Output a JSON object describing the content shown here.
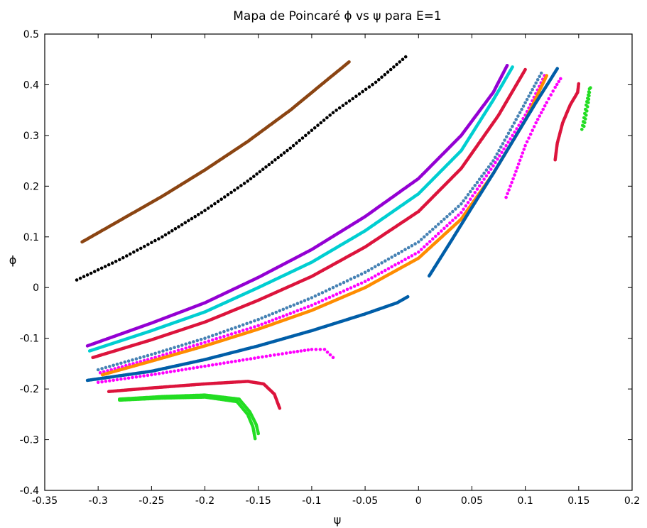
{
  "chart_data": {
    "type": "scatter",
    "title": "Mapa de Poincaré ϕ vs ψ para E=1",
    "xlabel": "ψ",
    "ylabel": "ϕ",
    "xlim": [
      -0.35,
      0.2
    ],
    "ylim": [
      -0.4,
      0.5
    ],
    "grid": false,
    "legend": "none",
    "x_ticks": [
      "-0.35",
      "-0.3",
      "-0.25",
      "-0.2",
      "-0.15",
      "-0.1",
      "-0.05",
      "0",
      "0.05",
      "0.1",
      "0.15",
      "0.2"
    ],
    "x_tick_values": [
      -0.35,
      -0.3,
      -0.25,
      -0.2,
      -0.15,
      -0.1,
      -0.05,
      0,
      0.05,
      0.1,
      0.15,
      0.2
    ],
    "y_ticks": [
      "0.5",
      "0.4",
      "0.3",
      "0.2",
      "0.1",
      "0",
      "-0.1",
      "-0.2",
      "-0.3",
      "-0.4"
    ],
    "y_tick_values": [
      0.5,
      0.4,
      0.3,
      0.2,
      0.1,
      0,
      -0.1,
      -0.2,
      -0.3,
      -0.4
    ],
    "series": [
      {
        "color": "#8b4513",
        "dense": true,
        "points": [
          [
            -0.315,
            0.09
          ],
          [
            -0.28,
            0.132
          ],
          [
            -0.24,
            0.18
          ],
          [
            -0.2,
            0.232
          ],
          [
            -0.16,
            0.288
          ],
          [
            -0.12,
            0.35
          ],
          [
            -0.09,
            0.402
          ],
          [
            -0.065,
            0.445
          ]
        ]
      },
      {
        "color": "#000000",
        "dense": false,
        "points": [
          [
            -0.32,
            0.015
          ],
          [
            -0.28,
            0.055
          ],
          [
            -0.24,
            0.1
          ],
          [
            -0.2,
            0.152
          ],
          [
            -0.16,
            0.21
          ],
          [
            -0.12,
            0.275
          ],
          [
            -0.08,
            0.345
          ],
          [
            -0.04,
            0.405
          ],
          [
            -0.012,
            0.455
          ]
        ]
      },
      {
        "color": "#9400d3",
        "dense": true,
        "points": [
          [
            -0.31,
            -0.115
          ],
          [
            -0.25,
            -0.07
          ],
          [
            -0.2,
            -0.03
          ],
          [
            -0.15,
            0.02
          ],
          [
            -0.1,
            0.075
          ],
          [
            -0.05,
            0.14
          ],
          [
            0,
            0.215
          ],
          [
            0.04,
            0.3
          ],
          [
            0.07,
            0.385
          ],
          [
            0.083,
            0.438
          ]
        ]
      },
      {
        "color": "#00ced1",
        "dense": true,
        "points": [
          [
            -0.308,
            -0.125
          ],
          [
            -0.25,
            -0.085
          ],
          [
            -0.2,
            -0.048
          ],
          [
            -0.15,
            0.0
          ],
          [
            -0.1,
            0.05
          ],
          [
            -0.05,
            0.112
          ],
          [
            0,
            0.185
          ],
          [
            0.04,
            0.27
          ],
          [
            0.07,
            0.37
          ],
          [
            0.088,
            0.435
          ]
        ]
      },
      {
        "color": "#dc143c",
        "dense": true,
        "points": [
          [
            -0.305,
            -0.138
          ],
          [
            -0.25,
            -0.103
          ],
          [
            -0.2,
            -0.068
          ],
          [
            -0.15,
            -0.025
          ],
          [
            -0.1,
            0.022
          ],
          [
            -0.05,
            0.08
          ],
          [
            0,
            0.15
          ],
          [
            0.04,
            0.235
          ],
          [
            0.075,
            0.34
          ],
          [
            0.1,
            0.43
          ]
        ]
      },
      {
        "color": "#4682b4",
        "dense": false,
        "points": [
          [
            -0.3,
            -0.162
          ],
          [
            -0.25,
            -0.132
          ],
          [
            -0.2,
            -0.1
          ],
          [
            -0.15,
            -0.063
          ],
          [
            -0.1,
            -0.02
          ],
          [
            -0.05,
            0.03
          ],
          [
            0,
            0.09
          ],
          [
            0.04,
            0.165
          ],
          [
            0.07,
            0.25
          ],
          [
            0.095,
            0.345
          ],
          [
            0.115,
            0.423
          ]
        ]
      },
      {
        "color": "#ff00ff",
        "dense": false,
        "points": [
          [
            -0.298,
            -0.168
          ],
          [
            -0.25,
            -0.14
          ],
          [
            -0.2,
            -0.108
          ],
          [
            -0.15,
            -0.075
          ],
          [
            -0.1,
            -0.035
          ],
          [
            -0.05,
            0.012
          ],
          [
            0,
            0.07
          ],
          [
            0.04,
            0.148
          ],
          [
            0.07,
            0.24
          ],
          [
            0.1,
            0.34
          ],
          [
            0.118,
            0.418
          ]
        ]
      },
      {
        "color": "#ff8c00",
        "dense": true,
        "points": [
          [
            -0.296,
            -0.172
          ],
          [
            -0.25,
            -0.145
          ],
          [
            -0.2,
            -0.115
          ],
          [
            -0.15,
            -0.082
          ],
          [
            -0.1,
            -0.045
          ],
          [
            -0.05,
            0.0
          ],
          [
            0,
            0.058
          ],
          [
            0.04,
            0.135
          ],
          [
            0.07,
            0.225
          ],
          [
            0.1,
            0.33
          ],
          [
            0.12,
            0.418
          ]
        ]
      },
      {
        "color": "#005ea8",
        "dense": true,
        "points": [
          [
            -0.31,
            -0.183
          ],
          [
            -0.25,
            -0.165
          ],
          [
            -0.2,
            -0.142
          ],
          [
            -0.15,
            -0.115
          ],
          [
            -0.1,
            -0.085
          ],
          [
            -0.05,
            -0.052
          ],
          [
            -0.02,
            -0.03
          ],
          [
            -0.01,
            -0.018
          ]
        ]
      },
      {
        "color": "#005ea8",
        "dense": true,
        "points": [
          [
            0.01,
            0.023
          ],
          [
            0.03,
            0.09
          ],
          [
            0.05,
            0.158
          ],
          [
            0.07,
            0.225
          ],
          [
            0.09,
            0.295
          ],
          [
            0.11,
            0.365
          ],
          [
            0.122,
            0.405
          ],
          [
            0.13,
            0.432
          ]
        ]
      },
      {
        "color": "#ff00ff",
        "dense": false,
        "points": [
          [
            -0.3,
            -0.187
          ],
          [
            -0.25,
            -0.172
          ],
          [
            -0.2,
            -0.155
          ],
          [
            -0.15,
            -0.138
          ],
          [
            -0.12,
            -0.128
          ],
          [
            -0.1,
            -0.122
          ],
          [
            -0.088,
            -0.122
          ],
          [
            -0.08,
            -0.138
          ]
        ]
      },
      {
        "color": "#ff00ff",
        "dense": false,
        "points": [
          [
            0.082,
            0.178
          ],
          [
            0.09,
            0.222
          ],
          [
            0.1,
            0.28
          ],
          [
            0.11,
            0.325
          ],
          [
            0.12,
            0.365
          ],
          [
            0.128,
            0.395
          ],
          [
            0.133,
            0.412
          ]
        ]
      },
      {
        "color": "#dc143c",
        "dense": true,
        "points": [
          [
            -0.29,
            -0.205
          ],
          [
            -0.25,
            -0.198
          ],
          [
            -0.2,
            -0.19
          ],
          [
            -0.16,
            -0.185
          ],
          [
            -0.145,
            -0.19
          ],
          [
            -0.135,
            -0.21
          ],
          [
            -0.13,
            -0.238
          ]
        ]
      },
      {
        "color": "#dc143c",
        "dense": true,
        "points": [
          [
            0.128,
            0.252
          ],
          [
            0.13,
            0.285
          ],
          [
            0.135,
            0.325
          ],
          [
            0.142,
            0.36
          ],
          [
            0.149,
            0.385
          ],
          [
            0.15,
            0.402
          ]
        ]
      },
      {
        "color": "#22dd22",
        "dense": true,
        "points": [
          [
            -0.28,
            -0.222
          ],
          [
            -0.24,
            -0.218
          ],
          [
            -0.2,
            -0.216
          ],
          [
            -0.17,
            -0.225
          ],
          [
            -0.16,
            -0.25
          ],
          [
            -0.155,
            -0.275
          ],
          [
            -0.153,
            -0.298
          ]
        ]
      },
      {
        "color": "#22dd22",
        "dense": true,
        "points": [
          [
            -0.28,
            -0.22
          ],
          [
            -0.24,
            -0.215
          ],
          [
            -0.2,
            -0.212
          ],
          [
            -0.168,
            -0.22
          ],
          [
            -0.158,
            -0.245
          ],
          [
            -0.152,
            -0.27
          ],
          [
            -0.15,
            -0.288
          ]
        ]
      },
      {
        "color": "#22dd22",
        "dense": false,
        "points": [
          [
            0.153,
            0.312
          ],
          [
            0.155,
            0.335
          ],
          [
            0.157,
            0.36
          ],
          [
            0.159,
            0.38
          ],
          [
            0.16,
            0.392
          ]
        ]
      },
      {
        "color": "#22dd22",
        "dense": false,
        "points": [
          [
            0.155,
            0.318
          ],
          [
            0.157,
            0.34
          ],
          [
            0.159,
            0.365
          ],
          [
            0.16,
            0.385
          ],
          [
            0.161,
            0.394
          ]
        ]
      }
    ]
  }
}
